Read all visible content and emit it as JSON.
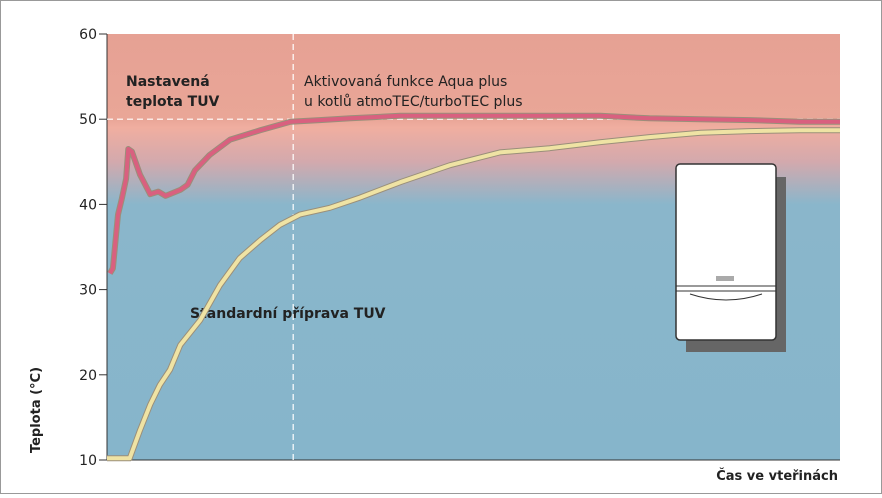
{
  "chart_data": {
    "type": "line",
    "xlabel": "Čas ve vteřinách",
    "ylabel": "Teplota (°C)",
    "xlim": [
      0,
      100
    ],
    "ylim": [
      10,
      60
    ],
    "yticks": [
      10,
      20,
      30,
      40,
      50,
      60
    ],
    "hline": 50,
    "vline": 25.4,
    "annotations": {
      "setpoint": [
        "Nastavená",
        "teplota TUV"
      ],
      "aqua": [
        "Aktivovaná funkce Aqua plus",
        "u kotlů atmoTEC/turboTEC plus"
      ],
      "standard": "Standardní příprava TUV"
    },
    "series": [
      {
        "color": "#d9607f",
        "x": [
          0.4,
          0.8,
          1.5,
          2,
          2.6,
          2.9,
          3.4,
          4.5,
          5.9,
          7,
          8,
          10,
          11,
          12,
          14,
          16.8,
          20.9,
          25,
          29,
          33.2,
          40,
          53.6,
          67.3,
          74,
          81,
          87.7,
          94.5,
          100
        ],
        "values": [
          31.9,
          32.5,
          38.8,
          40.6,
          43,
          46.5,
          46.2,
          43.5,
          41.2,
          41.5,
          41,
          41.7,
          42.3,
          44,
          45.8,
          47.6,
          48.7,
          49.7,
          49.9,
          50.1,
          50.4,
          50.4,
          50.4,
          50.1,
          50,
          49.9,
          49.7,
          49.7
        ]
      },
      {
        "color": "#efe3a4",
        "x": [
          0,
          3.1,
          4.5,
          5.9,
          7.2,
          8.6,
          10,
          12.7,
          15.4,
          18.1,
          20.9,
          23.6,
          26.3,
          30.4,
          34.5,
          40,
          46.8,
          53.6,
          60.4,
          67.3,
          74,
          81,
          87.7,
          94.5,
          100
        ],
        "values": [
          10.2,
          10.2,
          13.5,
          16.5,
          18.8,
          20.6,
          23.5,
          26.4,
          30.5,
          33.7,
          35.8,
          37.6,
          38.8,
          39.6,
          40.8,
          42.6,
          44.6,
          46.1,
          46.6,
          47.3,
          47.9,
          48.4,
          48.6,
          48.7,
          48.7
        ]
      }
    ]
  }
}
